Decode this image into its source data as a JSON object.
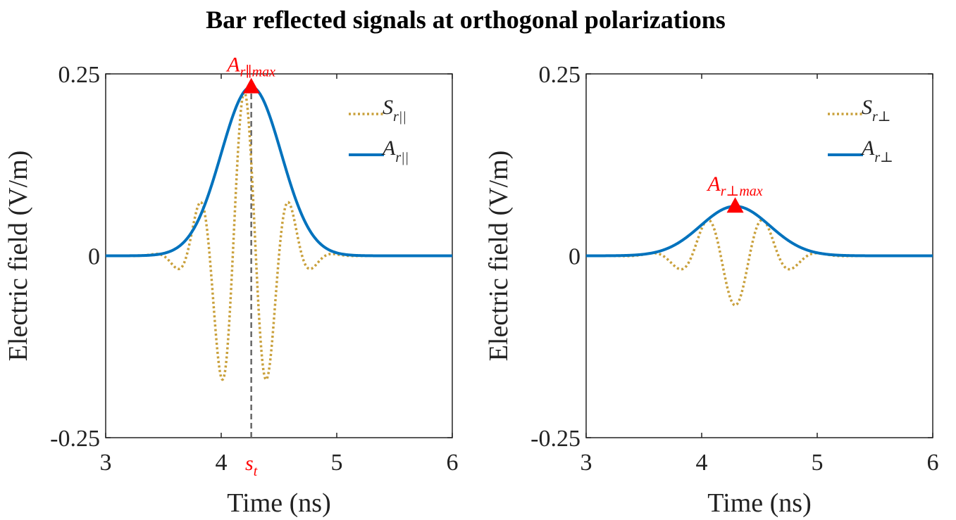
{
  "title": "Bar reflected signals at orthogonal polarizations",
  "colors": {
    "envelope": "#0072BD",
    "signal": "#C9A03B",
    "marker": "#FF0000",
    "axis": "#222222",
    "dashed": "#666666"
  },
  "chart_data": [
    {
      "type": "line",
      "panel": "left",
      "xlabel": "Time (ns)",
      "ylabel": "Electric field (V/m)",
      "xlim": [
        3,
        6
      ],
      "ylim": [
        -0.25,
        0.25
      ],
      "xticks": [
        3,
        4,
        5,
        6
      ],
      "xtick_labels": [
        "3",
        "4",
        "5",
        "6"
      ],
      "yticks": [
        -0.25,
        0,
        0.25
      ],
      "ytick_labels": [
        "-0.25",
        "0",
        "0.25"
      ],
      "legend_position": "top-right",
      "series": [
        {
          "name": "S_r||",
          "label_main": "S",
          "label_sub": "r||",
          "style": "dotted",
          "color": "#C9A03B",
          "model": {
            "kind": "modulated_gaussian",
            "amplitude": 0.225,
            "center": 4.2,
            "sigma": 0.26,
            "frequency": 2.5
          }
        },
        {
          "name": "A_r||",
          "label_main": "A",
          "label_sub": "r||",
          "style": "solid",
          "color": "#0072BD",
          "model": {
            "kind": "gaussian",
            "amplitude": 0.232,
            "center": 4.26,
            "sigma": 0.26
          }
        }
      ],
      "peak_marker": {
        "x": 4.26,
        "y": 0.232,
        "label_main": "A",
        "label_sub": "r∥max"
      },
      "vertical_line": {
        "x": 4.26,
        "label_main": "s",
        "label_sub": "t"
      }
    },
    {
      "type": "line",
      "panel": "right",
      "xlabel": "Time (ns)",
      "ylabel": "Electric field (V/m)",
      "xlim": [
        3,
        6
      ],
      "ylim": [
        -0.25,
        0.25
      ],
      "xticks": [
        3,
        4,
        5,
        6
      ],
      "xtick_labels": [
        "3",
        "4",
        "5",
        "6"
      ],
      "yticks": [
        -0.25,
        0,
        0.25
      ],
      "ytick_labels": [
        "-0.25",
        "0",
        "0.25"
      ],
      "legend_position": "top-right",
      "series": [
        {
          "name": "S_r⊥",
          "label_main": "S",
          "label_sub": "r⊥",
          "style": "dotted",
          "color": "#C9A03B",
          "model": {
            "kind": "modulated_gaussian",
            "amplitude": 0.068,
            "center": 4.29,
            "sigma": 0.3,
            "frequency": 2.0,
            "invert": true
          }
        },
        {
          "name": "A_r⊥",
          "label_main": "A",
          "label_sub": "r⊥",
          "style": "solid",
          "color": "#0072BD",
          "model": {
            "kind": "gaussian",
            "amplitude": 0.068,
            "center": 4.29,
            "sigma": 0.3
          }
        }
      ],
      "peak_marker": {
        "x": 4.29,
        "y": 0.068,
        "label_main": "A",
        "label_sub": "r⊥max"
      }
    }
  ]
}
